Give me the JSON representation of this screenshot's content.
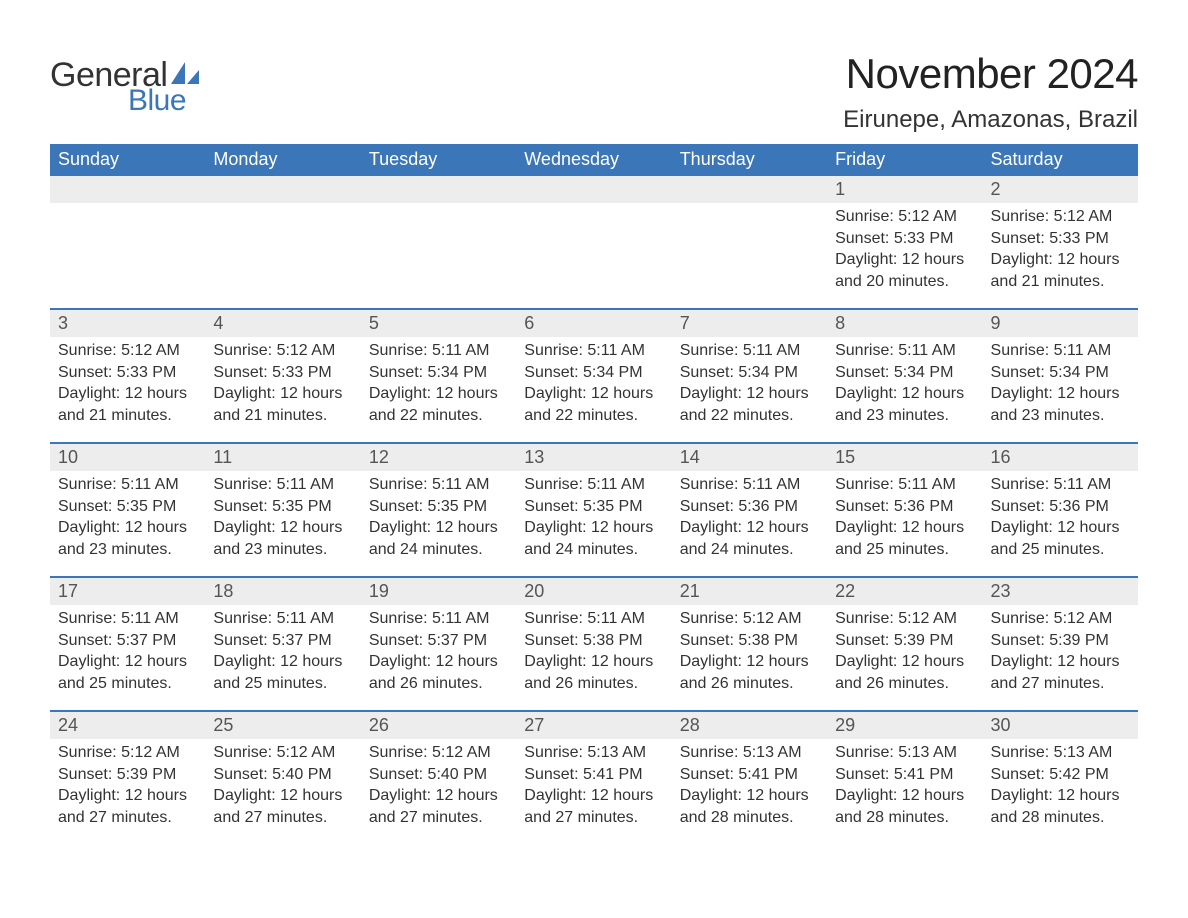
{
  "logo": {
    "word1": "General",
    "word2": "Blue",
    "accent_color": "#3a76b8"
  },
  "title": "November 2024",
  "location": "Eirunepe, Amazonas, Brazil",
  "colors": {
    "header_bg": "#3a76b8",
    "header_text": "#ffffff",
    "daynum_bg": "#ededed",
    "week_divider": "#3a76b8",
    "body_text": "#333333"
  },
  "weekdays": [
    "Sunday",
    "Monday",
    "Tuesday",
    "Wednesday",
    "Thursday",
    "Friday",
    "Saturday"
  ],
  "weeks": [
    [
      null,
      null,
      null,
      null,
      null,
      {
        "n": "1",
        "sunrise": "5:12 AM",
        "sunset": "5:33 PM",
        "daylight": "12 hours and 20 minutes."
      },
      {
        "n": "2",
        "sunrise": "5:12 AM",
        "sunset": "5:33 PM",
        "daylight": "12 hours and 21 minutes."
      }
    ],
    [
      {
        "n": "3",
        "sunrise": "5:12 AM",
        "sunset": "5:33 PM",
        "daylight": "12 hours and 21 minutes."
      },
      {
        "n": "4",
        "sunrise": "5:12 AM",
        "sunset": "5:33 PM",
        "daylight": "12 hours and 21 minutes."
      },
      {
        "n": "5",
        "sunrise": "5:11 AM",
        "sunset": "5:34 PM",
        "daylight": "12 hours and 22 minutes."
      },
      {
        "n": "6",
        "sunrise": "5:11 AM",
        "sunset": "5:34 PM",
        "daylight": "12 hours and 22 minutes."
      },
      {
        "n": "7",
        "sunrise": "5:11 AM",
        "sunset": "5:34 PM",
        "daylight": "12 hours and 22 minutes."
      },
      {
        "n": "8",
        "sunrise": "5:11 AM",
        "sunset": "5:34 PM",
        "daylight": "12 hours and 23 minutes."
      },
      {
        "n": "9",
        "sunrise": "5:11 AM",
        "sunset": "5:34 PM",
        "daylight": "12 hours and 23 minutes."
      }
    ],
    [
      {
        "n": "10",
        "sunrise": "5:11 AM",
        "sunset": "5:35 PM",
        "daylight": "12 hours and 23 minutes."
      },
      {
        "n": "11",
        "sunrise": "5:11 AM",
        "sunset": "5:35 PM",
        "daylight": "12 hours and 23 minutes."
      },
      {
        "n": "12",
        "sunrise": "5:11 AM",
        "sunset": "5:35 PM",
        "daylight": "12 hours and 24 minutes."
      },
      {
        "n": "13",
        "sunrise": "5:11 AM",
        "sunset": "5:35 PM",
        "daylight": "12 hours and 24 minutes."
      },
      {
        "n": "14",
        "sunrise": "5:11 AM",
        "sunset": "5:36 PM",
        "daylight": "12 hours and 24 minutes."
      },
      {
        "n": "15",
        "sunrise": "5:11 AM",
        "sunset": "5:36 PM",
        "daylight": "12 hours and 25 minutes."
      },
      {
        "n": "16",
        "sunrise": "5:11 AM",
        "sunset": "5:36 PM",
        "daylight": "12 hours and 25 minutes."
      }
    ],
    [
      {
        "n": "17",
        "sunrise": "5:11 AM",
        "sunset": "5:37 PM",
        "daylight": "12 hours and 25 minutes."
      },
      {
        "n": "18",
        "sunrise": "5:11 AM",
        "sunset": "5:37 PM",
        "daylight": "12 hours and 25 minutes."
      },
      {
        "n": "19",
        "sunrise": "5:11 AM",
        "sunset": "5:37 PM",
        "daylight": "12 hours and 26 minutes."
      },
      {
        "n": "20",
        "sunrise": "5:11 AM",
        "sunset": "5:38 PM",
        "daylight": "12 hours and 26 minutes."
      },
      {
        "n": "21",
        "sunrise": "5:12 AM",
        "sunset": "5:38 PM",
        "daylight": "12 hours and 26 minutes."
      },
      {
        "n": "22",
        "sunrise": "5:12 AM",
        "sunset": "5:39 PM",
        "daylight": "12 hours and 26 minutes."
      },
      {
        "n": "23",
        "sunrise": "5:12 AM",
        "sunset": "5:39 PM",
        "daylight": "12 hours and 27 minutes."
      }
    ],
    [
      {
        "n": "24",
        "sunrise": "5:12 AM",
        "sunset": "5:39 PM",
        "daylight": "12 hours and 27 minutes."
      },
      {
        "n": "25",
        "sunrise": "5:12 AM",
        "sunset": "5:40 PM",
        "daylight": "12 hours and 27 minutes."
      },
      {
        "n": "26",
        "sunrise": "5:12 AM",
        "sunset": "5:40 PM",
        "daylight": "12 hours and 27 minutes."
      },
      {
        "n": "27",
        "sunrise": "5:13 AM",
        "sunset": "5:41 PM",
        "daylight": "12 hours and 27 minutes."
      },
      {
        "n": "28",
        "sunrise": "5:13 AM",
        "sunset": "5:41 PM",
        "daylight": "12 hours and 28 minutes."
      },
      {
        "n": "29",
        "sunrise": "5:13 AM",
        "sunset": "5:41 PM",
        "daylight": "12 hours and 28 minutes."
      },
      {
        "n": "30",
        "sunrise": "5:13 AM",
        "sunset": "5:42 PM",
        "daylight": "12 hours and 28 minutes."
      }
    ]
  ],
  "labels": {
    "sunrise": "Sunrise: ",
    "sunset": "Sunset: ",
    "daylight": "Daylight: "
  }
}
